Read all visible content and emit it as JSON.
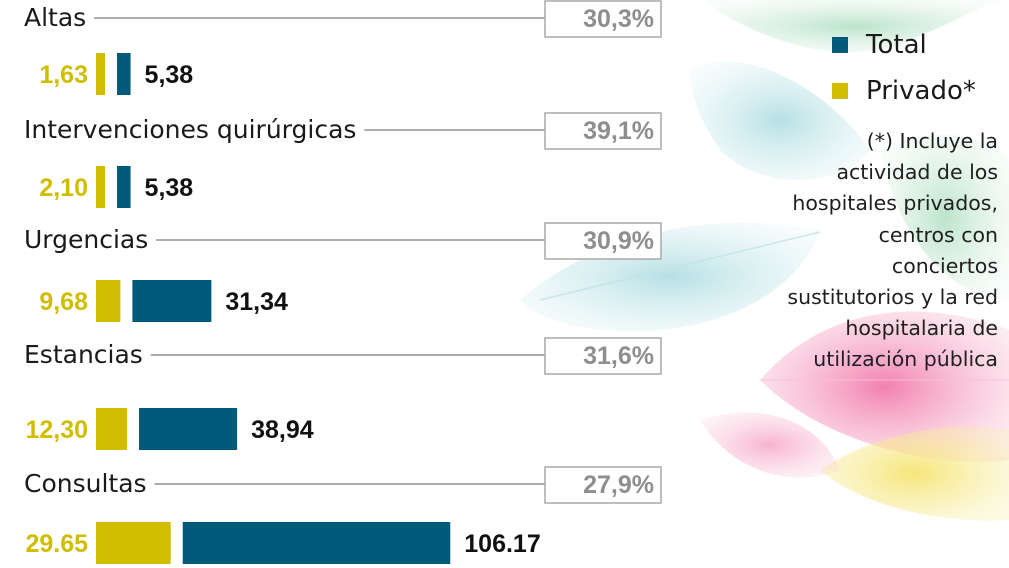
{
  "chart_data": {
    "type": "bar",
    "categories": [
      "Altas",
      "Intervenciones quirúrgicas",
      "Urgencias",
      "Estancias",
      "Consultas"
    ],
    "series": [
      {
        "name": "Privado*",
        "values": [
          1.63,
          2.1,
          9.68,
          12.3,
          29.65
        ],
        "labels": [
          "1,63",
          "2,10",
          "9,68",
          "12,30",
          "29.65"
        ]
      },
      {
        "name": "Total",
        "values": [
          5.38,
          5.38,
          31.34,
          38.94,
          106.17
        ],
        "labels": [
          "5,38",
          "5,38",
          "31,34",
          "38,94",
          "106.17"
        ]
      }
    ],
    "percentages": [
      "30,3%",
      "39,1%",
      "30,9%",
      "31,6%",
      "27,9%"
    ],
    "colors": {
      "total": "#005a7a",
      "privado": "#d1bd00",
      "percent_text": "#8e8e8e",
      "divider": "#7a7a7a"
    },
    "legend_position": "top-right"
  },
  "legend": {
    "items": [
      {
        "label": "Total",
        "color": "#005a7a"
      },
      {
        "label": "Privado*",
        "color": "#d1bd00"
      }
    ]
  },
  "note": "(*) Incluye la actividad de los hospitales privados, centros con conciertos sustitutorios y la red hospitalaria de utilización pública"
}
